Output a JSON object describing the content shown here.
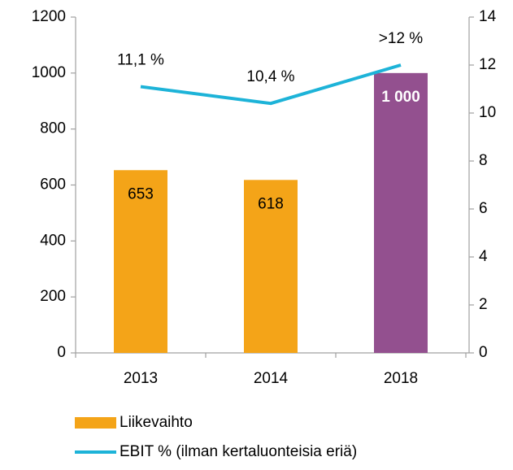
{
  "chart_data": {
    "type": "bar",
    "categories": [
      "2013",
      "2014",
      "2018"
    ],
    "ylim": [
      0,
      1200
    ],
    "yticks": [
      0,
      200,
      400,
      600,
      800,
      1000,
      1200
    ],
    "y2lim": [
      0,
      14
    ],
    "y2ticks": [
      0,
      2,
      4,
      6,
      8,
      10,
      12,
      14
    ],
    "series": [
      {
        "name": "Liikevaihto",
        "type": "bar",
        "color": "#f4a418",
        "colors": [
          "#f4a418",
          "#f4a418",
          "#93508f"
        ],
        "values": [
          653,
          618,
          1000
        ],
        "value_labels": [
          "653",
          "618",
          "1 000"
        ]
      },
      {
        "name": "EBIT % (ilman kertaluonteisia eriä)",
        "type": "line",
        "axis": "y2",
        "color": "#1db3d8",
        "values": [
          11.1,
          10.4,
          12
        ],
        "value_labels": [
          "11,1 %",
          "10,4 %",
          ">12 %"
        ]
      }
    ]
  }
}
